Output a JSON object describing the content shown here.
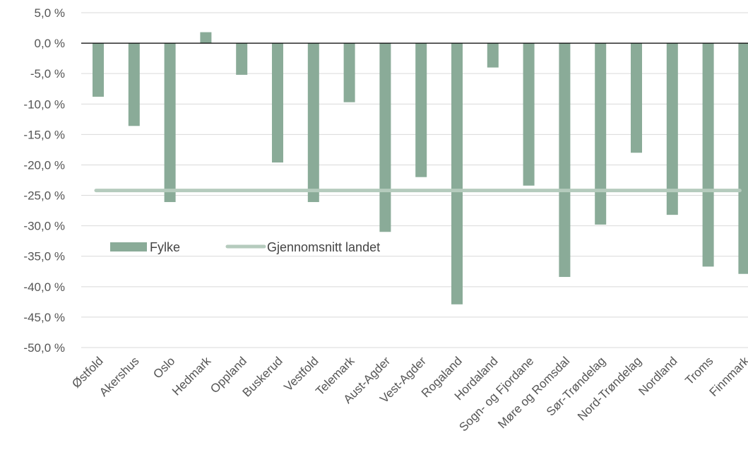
{
  "chart_data": {
    "type": "bar",
    "title": "",
    "xlabel": "",
    "ylabel": "",
    "ylim": [
      -50,
      5
    ],
    "ytick_step": 5,
    "ytick_labels": [
      "5,0 %",
      "0,0 %",
      "-5,0 %",
      "-10,0 %",
      "-15,0 %",
      "-20,0 %",
      "-25,0 %",
      "-30,0 %",
      "-35,0 %",
      "-40,0 %",
      "-45,0 %",
      "-50,0 %"
    ],
    "grid": true,
    "legend_position": "center-left",
    "categories": [
      "Østfold",
      "Akershus",
      "Oslo",
      "Hedmark",
      "Oppland",
      "Buskerud",
      "Vestfold",
      "Telemark",
      "Aust-Agder",
      "Vest-Agder",
      "Rogaland",
      "Hordaland",
      "Sogn- og Fjordane",
      "Møre og Romsdal",
      "Sør-Trøndelag",
      "Nord-Trøndelag",
      "Nordland",
      "Troms",
      "Finnmark"
    ],
    "series": [
      {
        "name": "Fylke",
        "type": "bar",
        "color": "#8aab98",
        "values": [
          -8.8,
          -13.6,
          -26.1,
          1.8,
          -5.2,
          -19.6,
          -26.1,
          -9.7,
          -31.0,
          -22.0,
          -42.9,
          -4.0,
          -23.4,
          -38.4,
          -29.8,
          -18.0,
          -28.2,
          -36.7,
          -37.9
        ]
      },
      {
        "name": "Gjennomsnitt landet",
        "type": "line",
        "color": "#b5cbbd",
        "value": -24.2
      }
    ]
  }
}
